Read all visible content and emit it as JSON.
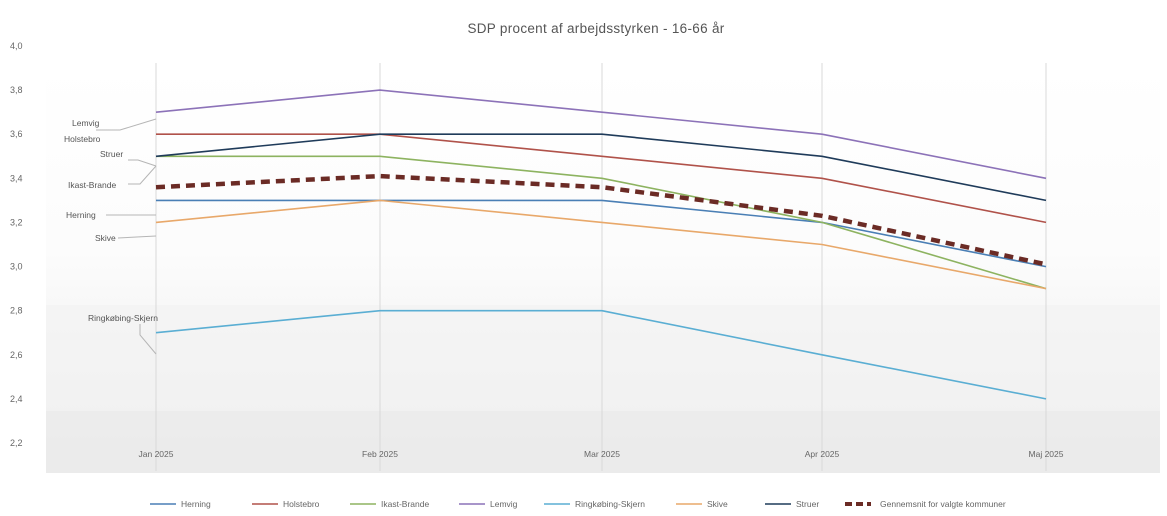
{
  "chart_data": {
    "type": "line",
    "title": "SDP procent af arbejdsstyrken  - 16-66 år",
    "xlabel": "",
    "ylabel": "",
    "categories": [
      "Jan 2025",
      "Feb 2025",
      "Mar 2025",
      "Apr 2025",
      "Maj 2025"
    ],
    "ylim": [
      2.2,
      4.0
    ],
    "yticks": [
      "2,2",
      "2,4",
      "2,6",
      "2,8",
      "3,0",
      "3,2",
      "3,4",
      "3,6",
      "3,8",
      "4,0"
    ],
    "grid": "vertical",
    "legend_position": "bottom",
    "series": [
      {
        "name": "Herning",
        "color": "#4a7fb5",
        "dashed": false,
        "values": [
          3.3,
          3.3,
          3.3,
          3.2,
          3.0
        ],
        "annotation": "Herning"
      },
      {
        "name": "Holstebro",
        "color": "#b0524a",
        "dashed": false,
        "values": [
          3.6,
          3.6,
          3.5,
          3.4,
          3.2
        ],
        "annotation": "Holstebro"
      },
      {
        "name": "Ikast-Brande",
        "color": "#8db360",
        "dashed": false,
        "values": [
          3.5,
          3.5,
          3.4,
          3.2,
          2.9
        ],
        "annotation": "Ikast-Brande"
      },
      {
        "name": "Lemvig",
        "color": "#8c72b8",
        "dashed": false,
        "values": [
          3.7,
          3.8,
          3.7,
          3.6,
          3.4
        ],
        "annotation": "Lemvig"
      },
      {
        "name": "Ringkøbing-Skjern",
        "color": "#5aaed3",
        "dashed": false,
        "values": [
          2.7,
          2.8,
          2.8,
          2.6,
          2.4
        ],
        "annotation": "Ringkøbing-Skjern"
      },
      {
        "name": "Skive",
        "color": "#e8a86a",
        "dashed": false,
        "values": [
          3.2,
          3.3,
          3.2,
          3.1,
          2.9
        ],
        "annotation": "Skive"
      },
      {
        "name": "Struer",
        "color": "#1f3b5a",
        "dashed": false,
        "values": [
          3.5,
          3.6,
          3.6,
          3.5,
          3.3
        ],
        "annotation": "Struer"
      },
      {
        "name": "Gennemsnit for valgte kommuner",
        "color": "#6b2b25",
        "dashed": true,
        "values": [
          3.36,
          3.41,
          3.36,
          3.23,
          3.01
        ],
        "annotation": ""
      }
    ]
  }
}
